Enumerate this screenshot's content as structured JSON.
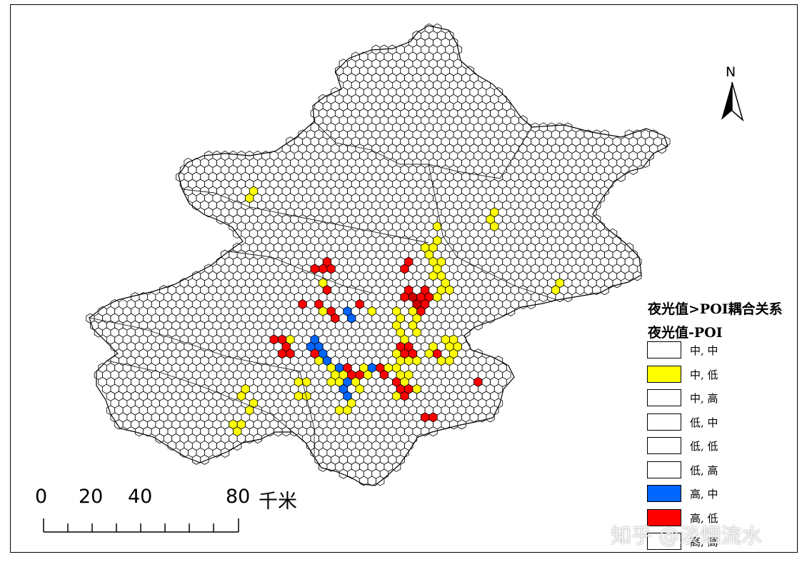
{
  "legend": {
    "title": "夜光值>POI耦合关系",
    "subtitle": "夜光值-POI",
    "items": [
      {
        "label": "中, 中",
        "color": "#ffffff"
      },
      {
        "label": "中, 低",
        "color": "#ffff00"
      },
      {
        "label": "中, 高",
        "color": "#ffffff"
      },
      {
        "label": "低, 中",
        "color": "#ffffff"
      },
      {
        "label": "低, 低",
        "color": "#ffffff"
      },
      {
        "label": "低, 高",
        "color": "#ffffff"
      },
      {
        "label": "高, 中",
        "color": "#0066ff"
      },
      {
        "label": "高, 低",
        "color": "#ff0000"
      },
      {
        "label": "高, 高",
        "color": "#ffffff"
      }
    ]
  },
  "scale_bar": {
    "ticks": [
      "0",
      "20",
      "40",
      "80"
    ],
    "unit": "千米"
  },
  "north_arrow": {
    "label": "N",
    "icon": "north-arrow-icon"
  },
  "watermark": "知乎 @淡烟流水",
  "colors": {
    "medium_low": "#ffff00",
    "high_medium": "#0066ff",
    "high_low": "#ff0000",
    "dark_high_low": "#cc0000",
    "empty": "#ffffff",
    "outline": "#000000"
  }
}
